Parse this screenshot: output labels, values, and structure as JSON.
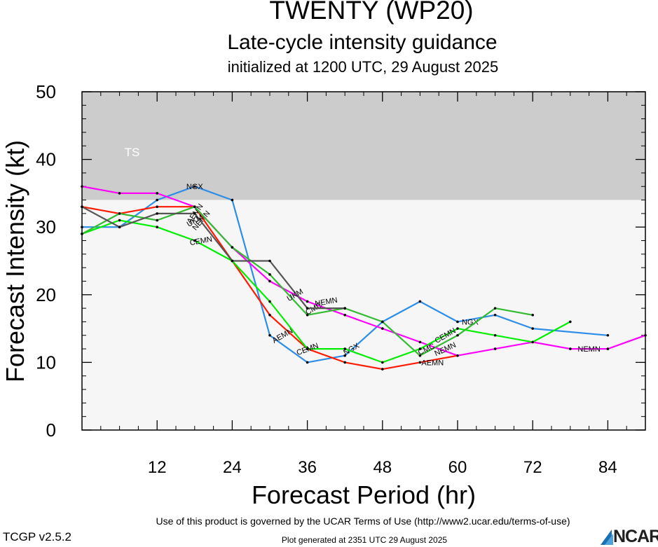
{
  "header": {
    "title": "TWENTY (WP20)",
    "subtitle": "Late-cycle intensity guidance",
    "init": "initialized at 1200 UTC, 29 August 2025"
  },
  "footer": {
    "terms": "Use of this product is governed by the UCAR Terms of Use (http://www2.ucar.edu/terms-of-use)",
    "version": "TCGP v2.5.2",
    "generated": "Plot generated at 2351 UTC   29 August 2025",
    "logo": "NCAR"
  },
  "chart_data": {
    "type": "line",
    "xlabel": "Forecast Period (hr)",
    "ylabel": "Forecast Intensity (kt)",
    "xlim": [
      0,
      90
    ],
    "ylim": [
      0,
      50
    ],
    "xticks": [
      12,
      24,
      36,
      48,
      60,
      72,
      84
    ],
    "yticks": [
      0,
      10,
      20,
      30,
      40,
      50
    ],
    "bands": [
      {
        "label": "TS",
        "from": 34,
        "to": 50,
        "color": "#cccccc"
      },
      {
        "label": "",
        "from": 0,
        "to": 34,
        "color": "#f6f6f6"
      }
    ],
    "series": [
      {
        "name": "NGX",
        "color": "#2e8de6",
        "x": [
          0,
          6,
          12,
          18,
          24,
          30,
          36,
          42,
          48,
          54,
          60,
          66,
          72,
          84
        ],
        "y": [
          30,
          30,
          34,
          36,
          34,
          14,
          10,
          11,
          16,
          19,
          16,
          17,
          15,
          14
        ],
        "labels": [
          {
            "x": 18,
            "y": 36,
            "angle": 0
          },
          {
            "x": 43,
            "y": 12,
            "angle": -30
          },
          {
            "x": 62,
            "y": 16,
            "angle": 0
          }
        ]
      },
      {
        "name": "NEMN",
        "color": "#ff00ff",
        "x": [
          0,
          6,
          12,
          18,
          24,
          30,
          36,
          42,
          48,
          54,
          60,
          66,
          72,
          78,
          84,
          90
        ],
        "y": [
          36,
          35,
          35,
          33,
          27,
          22,
          19,
          17,
          15,
          13,
          11,
          12,
          13,
          12,
          12,
          14
        ],
        "labels": [
          {
            "x": 19,
            "y": 31,
            "angle": -50
          },
          {
            "x": 39,
            "y": 19,
            "angle": -10
          },
          {
            "x": 58,
            "y": 12,
            "angle": -25
          },
          {
            "x": 81,
            "y": 12,
            "angle": 0
          }
        ]
      },
      {
        "name": "AEMN",
        "color": "#ff1a00",
        "x": [
          0,
          6,
          12,
          18,
          24,
          30,
          36,
          42,
          48,
          54,
          60
        ],
        "y": [
          33,
          32,
          33,
          33,
          25,
          17,
          12,
          10,
          9,
          10,
          11
        ],
        "labels": [
          {
            "x": 18,
            "y": 32,
            "angle": -55
          },
          {
            "x": 32,
            "y": 14,
            "angle": -30
          },
          {
            "x": 56,
            "y": 10,
            "angle": 0
          }
        ]
      },
      {
        "name": "CEMN",
        "color": "#00ee00",
        "x": [
          0,
          6,
          12,
          18,
          24,
          30,
          36,
          42,
          48,
          54,
          60,
          66,
          72,
          78
        ],
        "y": [
          29,
          31,
          30,
          28,
          25,
          19,
          12,
          12,
          10,
          12,
          15,
          14,
          13,
          16
        ],
        "labels": [
          {
            "x": 19,
            "y": 28,
            "angle": -10
          },
          {
            "x": 36,
            "y": 12,
            "angle": -20
          },
          {
            "x": 58,
            "y": 14,
            "angle": -30
          }
        ]
      },
      {
        "name": "CMC",
        "color": "#33bb33",
        "x": [
          0,
          6,
          12,
          18,
          24,
          30,
          36,
          42,
          48,
          54,
          60,
          66,
          72
        ],
        "y": [
          29,
          32,
          31,
          33,
          27,
          23,
          17,
          18,
          16,
          11,
          14,
          18,
          17
        ],
        "labels": [
          {
            "x": 37,
            "y": 18,
            "angle": -30
          },
          {
            "x": 55,
            "y": 12,
            "angle": -25
          }
        ]
      },
      {
        "name": "UKM",
        "color": "#555555",
        "x": [
          0,
          6,
          12,
          18,
          24,
          30,
          36,
          42
        ],
        "y": [
          33,
          30,
          32,
          32,
          25,
          25,
          18,
          18
        ],
        "labels": [
          {
            "x": 18,
            "y": 31,
            "angle": -30
          },
          {
            "x": 34,
            "y": 20,
            "angle": -30
          }
        ]
      }
    ]
  }
}
